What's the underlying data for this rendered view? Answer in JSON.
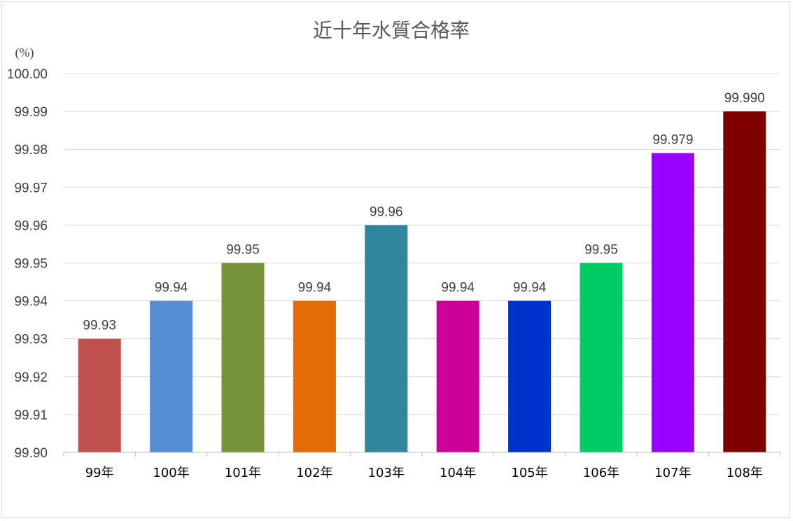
{
  "chart_data": {
    "type": "bar",
    "title": "近十年水質合格率",
    "ylabel": "(%)",
    "xlabel": "",
    "ylim": [
      99.9,
      100.0
    ],
    "y_ticks": [
      "99.90",
      "99.91",
      "99.92",
      "99.93",
      "99.94",
      "99.95",
      "99.96",
      "99.97",
      "99.98",
      "99.99",
      "100.00"
    ],
    "categories": [
      "99年",
      "100年",
      "101年",
      "102年",
      "103年",
      "104年",
      "105年",
      "106年",
      "107年",
      "108年"
    ],
    "values": [
      99.93,
      99.94,
      99.95,
      99.94,
      99.96,
      99.94,
      99.94,
      99.95,
      99.979,
      99.99
    ],
    "data_labels": [
      "99.93",
      "99.94",
      "99.95",
      "99.94",
      "99.96",
      "99.94",
      "99.94",
      "99.95",
      "99.979",
      "99.990"
    ],
    "colors": [
      "#c0504d",
      "#558ed5",
      "#77933c",
      "#e36c09",
      "#31859c",
      "#cc0099",
      "#0033cc",
      "#00cc66",
      "#9900ff",
      "#800000"
    ],
    "grid": true,
    "legend": "none"
  }
}
